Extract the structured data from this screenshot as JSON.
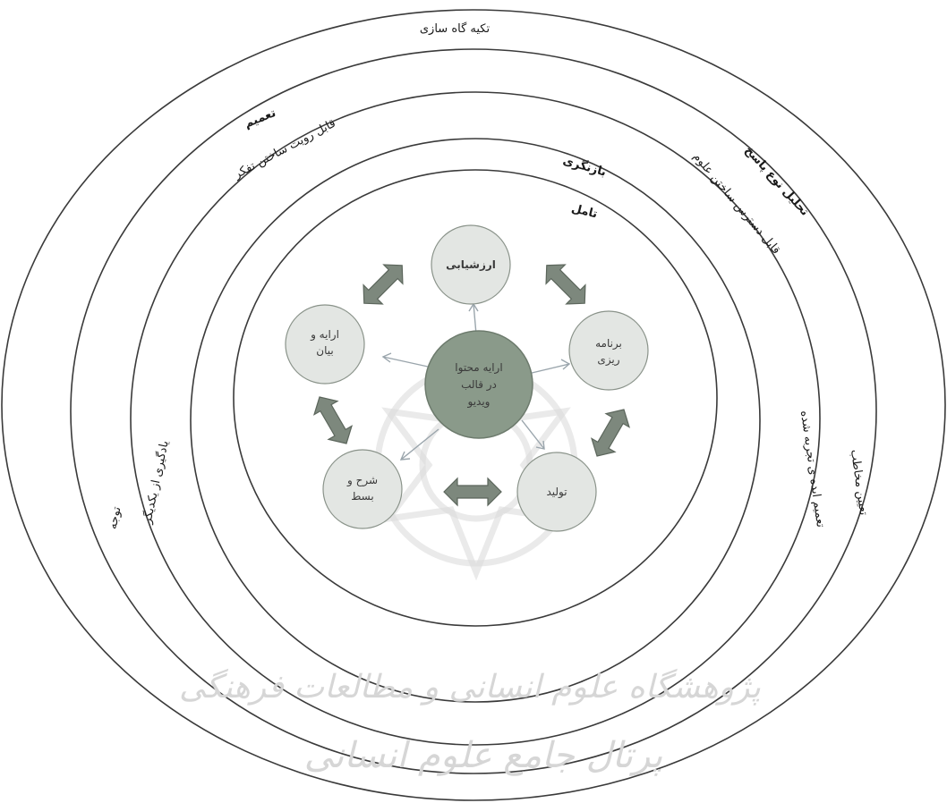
{
  "rings": {
    "r1_title": "تکیه گاه سازی",
    "r1_left": "توجه",
    "r1_right": "تعیین مخاطب",
    "r2_title": "تعمیم",
    "r2_right_title": "تحلیل نوع پاسخ",
    "r2_left": "یادگیری از یکدیگر",
    "r2_right": "تعمیم ایده ی تجربه شده",
    "r3_left": "قابل رویت ساختن تفکر",
    "r3_right": "قابل دسترس ساختن علوم",
    "r4_title": "بازنگری",
    "r5_title": "تامل"
  },
  "nodes": {
    "center": [
      "ارایه محتوا",
      "در قالب",
      "ویدیو"
    ],
    "top": [
      "ارزشیابی"
    ],
    "right": [
      "برنامه",
      "ریزی"
    ],
    "bottom_right": [
      "تولید"
    ],
    "bottom_left": [
      "شرح و",
      "بسط"
    ],
    "left": [
      "ارایه و",
      "بیان"
    ]
  },
  "watermark": {
    "line1": "پژوهشگاه علوم انسانی و مطالعات فرهنگی",
    "line2": "پرتال جامع علوم انسانی"
  },
  "colors": {
    "ring": "#3a3a3a",
    "node_fill": "#e3e6e3",
    "center_fill": "#8a9a8a",
    "arrow_fill": "#7d887d"
  }
}
